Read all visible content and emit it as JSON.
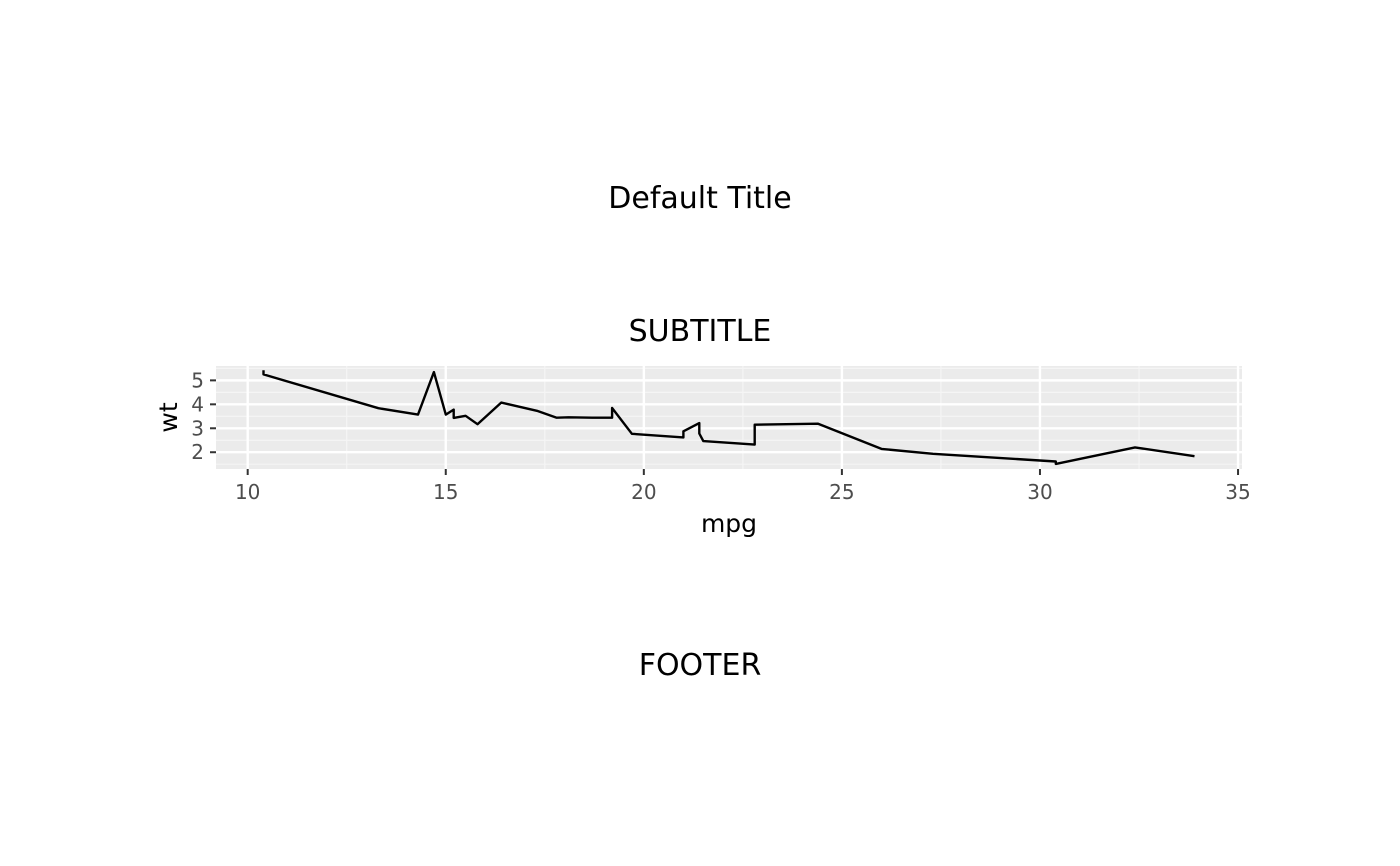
{
  "page": {
    "title": "Default Title",
    "subtitle": "SUBTITLE",
    "footer": "FOOTER"
  },
  "colors": {
    "panel_background": "#ebebeb",
    "grid_major": "#ffffff",
    "grid_minor": "#f5f5f5",
    "line": "#000000",
    "tick_text": "#4d4d4d"
  },
  "chart_data": {
    "type": "line",
    "title": "",
    "xlabel": "mpg",
    "ylabel": "wt",
    "xlim": [
      9.2,
      35.1
    ],
    "ylim": [
      1.3,
      5.6
    ],
    "x_ticks": [
      10,
      15,
      20,
      25,
      30,
      35
    ],
    "y_ticks": [
      2,
      3,
      4,
      5
    ],
    "grid": true,
    "legend": "none",
    "series": [
      {
        "x": [
          10.4,
          10.4,
          13.3,
          14.3,
          14.7,
          15.0,
          15.2,
          15.2,
          15.5,
          15.8,
          16.4,
          17.3,
          17.8,
          18.1,
          18.7,
          19.2,
          19.2,
          19.7,
          21.0,
          21.0,
          21.4,
          21.4,
          21.5,
          22.8,
          22.8,
          24.4,
          26.0,
          27.3,
          30.4,
          30.4,
          32.4,
          33.9
        ],
        "y": [
          5.424,
          5.25,
          3.84,
          3.57,
          5.345,
          3.57,
          3.78,
          3.435,
          3.52,
          3.17,
          4.07,
          3.73,
          3.44,
          3.46,
          3.44,
          3.44,
          3.845,
          2.77,
          2.62,
          2.875,
          3.215,
          2.78,
          2.465,
          2.32,
          3.15,
          3.19,
          2.14,
          1.935,
          1.615,
          1.513,
          2.2,
          1.835
        ]
      }
    ]
  }
}
